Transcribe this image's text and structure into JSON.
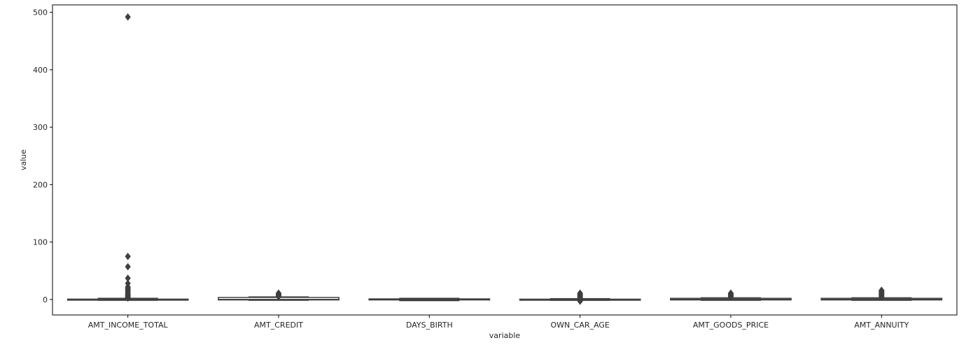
{
  "chart_data": {
    "type": "box",
    "xlabel": "variable",
    "ylabel": "value",
    "ylim": [
      -27,
      513
    ],
    "yticks": [
      0,
      100,
      200,
      300,
      400,
      500
    ],
    "categories": [
      "AMT_INCOME_TOTAL",
      "AMT_CREDIT",
      "DAYS_BIRTH",
      "OWN_CAR_AGE",
      "AMT_GOODS_PRICE",
      "AMT_ANNUITY"
    ],
    "boxes": [
      {
        "category": "AMT_INCOME_TOTAL",
        "q1": -0.6,
        "median": 0,
        "q3": 0.6,
        "whisker_low": -1.5,
        "whisker_high": 2,
        "outliers": [
          2.5,
          3,
          4,
          5,
          6,
          7,
          8,
          10,
          12,
          14,
          16,
          18,
          20,
          22,
          28,
          37,
          57,
          75,
          492
        ]
      },
      {
        "category": "AMT_CREDIT",
        "q1": -0.8,
        "median": 0,
        "q3": 3.5,
        "whisker_low": -1.5,
        "whisker_high": 4.5,
        "outliers": [
          5,
          6,
          7,
          8,
          9,
          10,
          11
        ]
      },
      {
        "category": "DAYS_BIRTH",
        "q1": -0.8,
        "median": 0,
        "q3": 1,
        "whisker_low": -2,
        "whisker_high": 2,
        "outliers": []
      },
      {
        "category": "OWN_CAR_AGE",
        "q1": -0.8,
        "median": 0,
        "q3": 0.5,
        "whisker_low": -1.5,
        "whisker_high": 1.5,
        "outliers": [
          -3,
          -1,
          2,
          3,
          4,
          5,
          6,
          7,
          8,
          9,
          10,
          11
        ]
      },
      {
        "category": "AMT_GOODS_PRICE",
        "q1": -0.8,
        "median": 0,
        "q3": 2,
        "whisker_low": -1.5,
        "whisker_high": 3,
        "outliers": [
          4,
          5,
          6,
          7,
          8,
          9,
          10,
          11
        ]
      },
      {
        "category": "AMT_ANNUITY",
        "q1": -0.8,
        "median": 0,
        "q3": 2,
        "whisker_low": -1.5,
        "whisker_high": 3,
        "outliers": [
          4,
          5,
          6,
          7,
          8,
          9,
          10,
          11,
          12,
          13,
          14,
          15,
          16
        ]
      }
    ],
    "grid": false,
    "box_color": "#ffffff",
    "line_color": "#3f3f3f"
  }
}
